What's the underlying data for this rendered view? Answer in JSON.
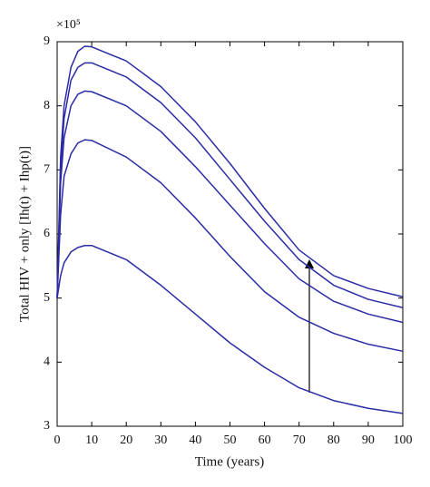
{
  "chart_data": {
    "type": "line",
    "x_label": "Time (years)",
    "y_label": "Total HIV + only [Ih(t) + Ihp(t)]",
    "y_multiplier": "×10⁵",
    "x": [
      0,
      1,
      2,
      4,
      6,
      8,
      10,
      20,
      30,
      40,
      50,
      60,
      70,
      80,
      90,
      100
    ],
    "series": [
      {
        "color": "#2b2ba6",
        "values": [
          5,
          7.2,
          8.0,
          8.6,
          8.85,
          8.93,
          8.92,
          8.7,
          8.3,
          7.75,
          7.1,
          6.4,
          5.75,
          5.35,
          5.15,
          5.02
        ]
      },
      {
        "color": "#2b2ba6",
        "values": [
          5,
          7.0,
          7.8,
          8.4,
          8.6,
          8.67,
          8.67,
          8.45,
          8.05,
          7.5,
          6.85,
          6.2,
          5.6,
          5.2,
          4.98,
          4.85
        ]
      },
      {
        "color": "#2b2ba6",
        "values": [
          5,
          6.8,
          7.5,
          8.0,
          8.18,
          8.23,
          8.22,
          8.0,
          7.6,
          7.05,
          6.45,
          5.85,
          5.3,
          4.95,
          4.75,
          4.62
        ]
      },
      {
        "color": "#2b2ba6",
        "values": [
          5,
          6.3,
          6.9,
          7.25,
          7.42,
          7.47,
          7.46,
          7.2,
          6.8,
          6.25,
          5.65,
          5.1,
          4.7,
          4.45,
          4.28,
          4.17
        ]
      },
      {
        "color": "#2b2ba6",
        "values": [
          5,
          5.35,
          5.55,
          5.72,
          5.79,
          5.82,
          5.82,
          5.6,
          5.2,
          4.75,
          4.3,
          3.92,
          3.6,
          3.4,
          3.28,
          3.2
        ]
      }
    ],
    "xlim": [
      0,
      100
    ],
    "xticks": [
      0,
      10,
      20,
      30,
      40,
      50,
      60,
      70,
      80,
      90,
      100
    ],
    "ylim": [
      3,
      9
    ],
    "yticks": [
      3,
      4,
      5,
      6,
      7,
      8,
      9
    ]
  }
}
